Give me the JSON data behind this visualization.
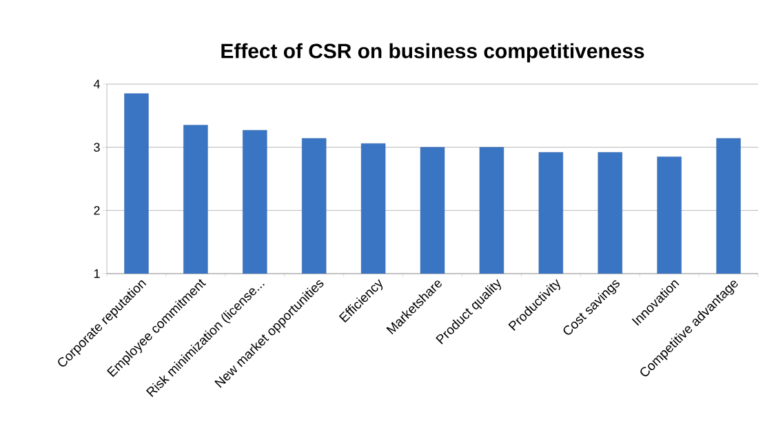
{
  "chart_data": {
    "type": "bar",
    "title": "Effect of CSR on business competitiveness",
    "categories": [
      "Corporate reputation",
      "Employee commitment",
      "Risk minimization (license...",
      "New market opportunities",
      "Efficiency",
      "Marketshare",
      "Product quality",
      "Productivity",
      "Cost savings",
      "Innovation",
      "Competitive advantage"
    ],
    "values": [
      3.85,
      3.35,
      3.27,
      3.14,
      3.06,
      3.0,
      3.0,
      2.92,
      2.92,
      2.85,
      3.14
    ],
    "color": "#3a75c4",
    "ylim": [
      1,
      4
    ],
    "yticks": [
      1,
      2,
      3,
      4
    ],
    "grid": "y"
  }
}
